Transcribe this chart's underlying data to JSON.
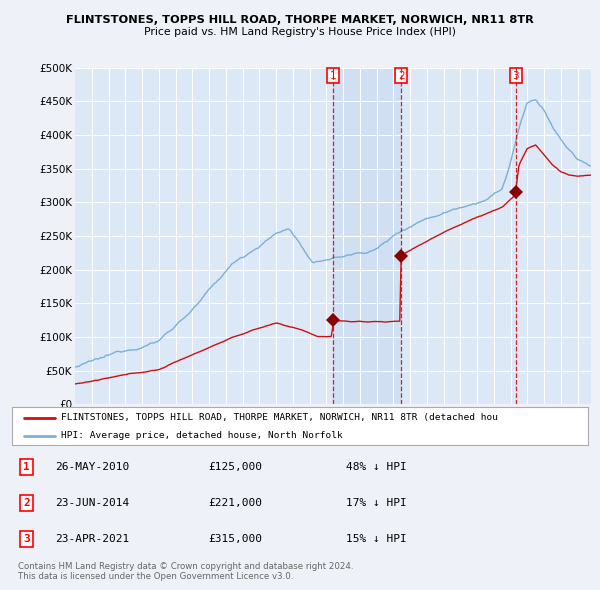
{
  "title1": "FLINTSTONES, TOPPS HILL ROAD, THORPE MARKET, NORWICH, NR11 8TR",
  "title2": "Price paid vs. HM Land Registry's House Price Index (HPI)",
  "ylim": [
    0,
    500000
  ],
  "yticks": [
    0,
    50000,
    100000,
    150000,
    200000,
    250000,
    300000,
    350000,
    400000,
    450000,
    500000
  ],
  "ytick_labels": [
    "£0",
    "£50K",
    "£100K",
    "£150K",
    "£200K",
    "£250K",
    "£300K",
    "£350K",
    "£400K",
    "£450K",
    "£500K"
  ],
  "background_color": "#eef2f8",
  "plot_background": "#dce8f5",
  "shade_color": "#c8daef",
  "grid_color": "#c8d8e8",
  "hpi_color": "#7ab0d8",
  "sale_color": "#cc1111",
  "marker_color": "#880000",
  "vline_color": "#cc1111",
  "xlim_left": 1995.0,
  "xlim_right": 2025.8,
  "transactions": [
    {
      "num": 1,
      "date_x": 2010.4,
      "price": 125000
    },
    {
      "num": 2,
      "date_x": 2014.47,
      "price": 221000
    },
    {
      "num": 3,
      "date_x": 2021.3,
      "price": 315000
    }
  ],
  "shade_x1": 2010.4,
  "shade_x2": 2014.47,
  "legend_line1": "FLINTSTONES, TOPPS HILL ROAD, THORPE MARKET, NORWICH, NR11 8TR (detached hou",
  "legend_line2": "HPI: Average price, detached house, North Norfolk",
  "footer1": "Contains HM Land Registry data © Crown copyright and database right 2024.",
  "footer2": "This data is licensed under the Open Government Licence v3.0.",
  "table_rows": [
    {
      "num": "1",
      "date": "26-MAY-2010",
      "price": "£125,000",
      "pct": "48% ↓ HPI"
    },
    {
      "num": "2",
      "date": "23-JUN-2014",
      "price": "£221,000",
      "pct": "17% ↓ HPI"
    },
    {
      "num": "3",
      "date": "23-APR-2021",
      "price": "£315,000",
      "pct": "15% ↓ HPI"
    }
  ]
}
